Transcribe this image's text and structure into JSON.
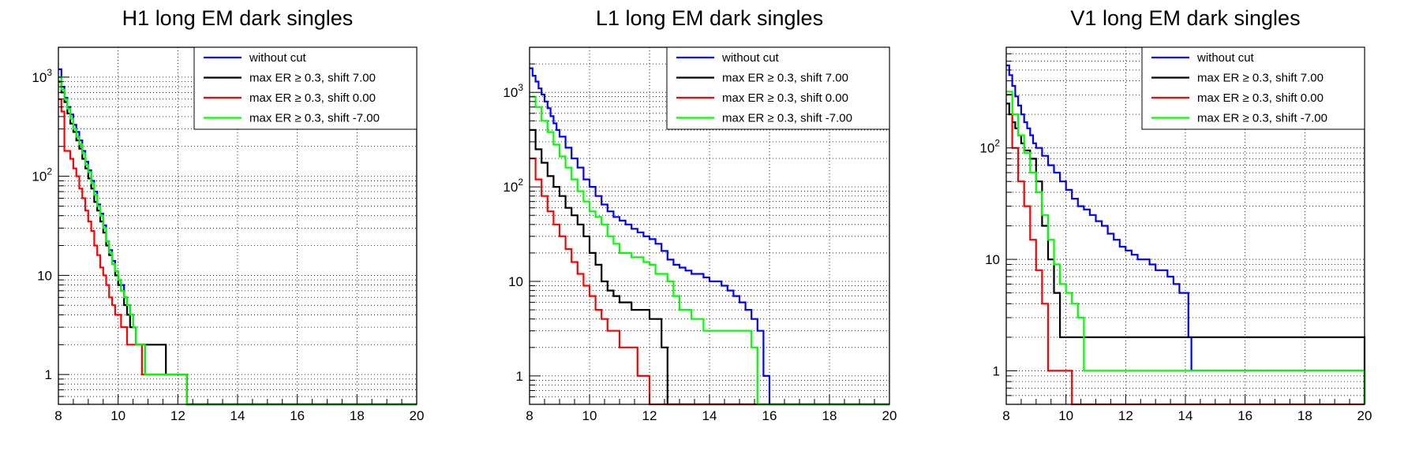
{
  "chart_data": [
    {
      "type": "step",
      "title": "H1 long EM dark singles",
      "xlabel": "",
      "ylabel": "",
      "xlim": [
        8,
        20
      ],
      "ylim": [
        0.5,
        2000
      ],
      "yscale": "log",
      "grid": true,
      "legend_position": "top-right",
      "x_ticks": [
        "8",
        "10",
        "12",
        "14",
        "16",
        "18",
        "20"
      ],
      "y_ticks": [
        {
          "v": 1,
          "base": "1"
        },
        {
          "v": 10,
          "base": "10"
        },
        {
          "v": 100,
          "base": "10",
          "exp": "2"
        },
        {
          "v": 1000,
          "base": "10",
          "exp": "3"
        }
      ],
      "series": [
        {
          "name": "without cut",
          "color": "#0000ff",
          "x": [
            8.0,
            8.1,
            8.2,
            8.3,
            8.4,
            8.5,
            8.6,
            8.7,
            8.8,
            8.9,
            9.0,
            9.1,
            9.2,
            9.3,
            9.4,
            9.5,
            9.6,
            9.7,
            9.8,
            9.9,
            10.0,
            10.1,
            10.2,
            10.3,
            10.4,
            10.5,
            10.6,
            10.7,
            10.8,
            10.9,
            11.6,
            11.7,
            12.3,
            12.4,
            20.0
          ],
          "y": [
            1200,
            800,
            620,
            500,
            420,
            330,
            280,
            230,
            180,
            140,
            115,
            90,
            70,
            52,
            42,
            32,
            22,
            18,
            14,
            11,
            9,
            8,
            6,
            5,
            4,
            3,
            2,
            2,
            2,
            1,
            1,
            1,
            0.5,
            0.5,
            0.5
          ]
        },
        {
          "name": "max ER ≥ 0.3, shift 7.00",
          "color": "#000000",
          "x": [
            8.0,
            8.1,
            8.2,
            8.3,
            8.4,
            8.5,
            8.6,
            8.7,
            8.8,
            8.9,
            9.0,
            9.1,
            9.2,
            9.3,
            9.4,
            9.5,
            9.6,
            9.7,
            9.8,
            9.9,
            10.0,
            10.1,
            10.2,
            10.3,
            10.4,
            10.5,
            10.6,
            10.7,
            10.8,
            11.6,
            11.7,
            12.3,
            12.4,
            20.0
          ],
          "y": [
            900,
            700,
            560,
            430,
            340,
            280,
            230,
            190,
            150,
            120,
            95,
            75,
            55,
            45,
            35,
            27,
            20,
            16,
            13,
            10,
            8,
            7,
            5,
            4,
            3,
            3,
            2,
            2,
            2,
            1,
            1,
            0.5,
            0.5,
            0.5
          ]
        },
        {
          "name": "max ER ≥ 0.3, shift 0.00",
          "color": "#ff0000",
          "x": [
            8.0,
            8.1,
            8.2,
            8.3,
            8.4,
            8.5,
            8.6,
            8.7,
            8.8,
            8.9,
            9.0,
            9.1,
            9.2,
            9.3,
            9.4,
            9.5,
            9.6,
            9.7,
            9.8,
            9.9,
            10.0,
            10.1,
            10.2,
            10.3,
            10.4,
            10.5,
            10.6,
            10.7,
            10.8,
            11.6,
            11.7,
            12.3,
            12.4,
            20.0
          ],
          "y": [
            600,
            450,
            180,
            180,
            150,
            120,
            100,
            75,
            60,
            45,
            35,
            28,
            20,
            16,
            12,
            10,
            8,
            6,
            5,
            4,
            4,
            3,
            3,
            2,
            2,
            2,
            2,
            2,
            1,
            1,
            1,
            0.5,
            0.5,
            0.5
          ]
        },
        {
          "name": "max ER ≥ 0.3, shift -7.00",
          "color": "#00ff00",
          "x": [
            8.0,
            8.1,
            8.2,
            8.3,
            8.4,
            8.5,
            8.6,
            8.7,
            8.8,
            8.9,
            9.0,
            9.1,
            9.2,
            9.3,
            9.4,
            9.5,
            9.6,
            9.7,
            9.8,
            9.9,
            10.0,
            10.1,
            10.2,
            10.3,
            10.4,
            10.5,
            10.6,
            10.7,
            10.8,
            10.9,
            11.6,
            11.7,
            12.3,
            12.4,
            20.0
          ],
          "y": [
            1000,
            750,
            600,
            480,
            380,
            300,
            250,
            210,
            170,
            130,
            110,
            85,
            65,
            50,
            40,
            30,
            22,
            17,
            13,
            11,
            9,
            7,
            6,
            5,
            4,
            3,
            2,
            2,
            2,
            1,
            1,
            1,
            0.5,
            0.5,
            0.5
          ]
        }
      ]
    },
    {
      "type": "step",
      "title": "L1 long EM dark singles",
      "xlabel": "",
      "ylabel": "",
      "xlim": [
        8,
        20
      ],
      "ylim": [
        0.5,
        3000
      ],
      "yscale": "log",
      "grid": true,
      "legend_position": "top-right",
      "x_ticks": [
        "8",
        "10",
        "12",
        "14",
        "16",
        "18",
        "20"
      ],
      "y_ticks": [
        {
          "v": 1,
          "base": "1"
        },
        {
          "v": 10,
          "base": "10"
        },
        {
          "v": 100,
          "base": "10",
          "exp": "2"
        },
        {
          "v": 1000,
          "base": "10",
          "exp": "3"
        }
      ],
      "series": [
        {
          "name": "without cut",
          "color": "#0000ff",
          "x": [
            8.0,
            8.1,
            8.2,
            8.3,
            8.4,
            8.5,
            8.6,
            8.7,
            8.8,
            8.9,
            9.0,
            9.2,
            9.4,
            9.6,
            9.8,
            10.0,
            10.2,
            10.4,
            10.6,
            10.8,
            11.0,
            11.2,
            11.4,
            11.6,
            11.8,
            12.0,
            12.2,
            12.4,
            12.6,
            12.8,
            13.0,
            13.2,
            13.4,
            13.6,
            13.8,
            14.0,
            14.2,
            14.4,
            14.6,
            14.8,
            15.0,
            15.2,
            15.4,
            15.6,
            15.8,
            16.0,
            20.0
          ],
          "y": [
            1800,
            1500,
            1300,
            1100,
            950,
            800,
            680,
            560,
            470,
            400,
            340,
            260,
            200,
            160,
            120,
            100,
            80,
            65,
            55,
            48,
            44,
            40,
            36,
            33,
            30,
            28,
            25,
            21,
            17,
            15,
            14,
            13,
            12,
            12,
            11,
            10,
            10,
            9,
            8,
            7,
            6,
            5,
            4,
            3,
            1,
            0.5,
            0.5
          ]
        },
        {
          "name": "max ER ≥ 0.3, shift 7.00",
          "color": "#000000",
          "x": [
            8.0,
            8.2,
            8.4,
            8.6,
            8.8,
            9.0,
            9.2,
            9.4,
            9.6,
            9.8,
            10.0,
            10.2,
            10.4,
            10.6,
            10.8,
            11.0,
            11.4,
            12.0,
            12.4,
            12.6,
            20.0
          ],
          "y": [
            400,
            250,
            180,
            130,
            100,
            80,
            60,
            50,
            40,
            30,
            20,
            15,
            10,
            8,
            7,
            6,
            5,
            4,
            2,
            0.5,
            0.5
          ]
        },
        {
          "name": "max ER ≥ 0.3, shift 0.00",
          "color": "#ff0000",
          "x": [
            8.0,
            8.2,
            8.4,
            8.6,
            8.8,
            9.0,
            9.2,
            9.4,
            9.6,
            9.8,
            10.0,
            10.2,
            10.4,
            10.6,
            11.0,
            11.6,
            12.0,
            20.0
          ],
          "y": [
            200,
            120,
            80,
            55,
            40,
            30,
            22,
            16,
            12,
            9,
            7,
            5,
            4,
            3,
            2,
            1,
            0.5,
            0.5
          ]
        },
        {
          "name": "max ER ≥ 0.3, shift -7.00",
          "color": "#00ff00",
          "x": [
            8.0,
            8.2,
            8.4,
            8.6,
            8.8,
            9.0,
            9.2,
            9.4,
            9.6,
            9.8,
            10.0,
            10.2,
            10.4,
            10.6,
            10.8,
            11.0,
            11.4,
            11.8,
            12.0,
            12.2,
            12.6,
            12.8,
            13.0,
            13.4,
            13.8,
            14.0,
            14.6,
            15.4,
            15.6,
            20.0
          ],
          "y": [
            900,
            700,
            500,
            380,
            280,
            210,
            160,
            120,
            90,
            70,
            55,
            48,
            40,
            30,
            25,
            20,
            18,
            16,
            15,
            12,
            10,
            7,
            5,
            4,
            3,
            3,
            3,
            2,
            0.5,
            0.5
          ]
        }
      ]
    },
    {
      "type": "step",
      "title": "V1 long EM dark singles",
      "xlabel": "",
      "ylabel": "",
      "xlim": [
        8,
        20
      ],
      "ylim": [
        0.5,
        800
      ],
      "yscale": "log",
      "grid": true,
      "legend_position": "top-right",
      "x_ticks": [
        "8",
        "10",
        "12",
        "14",
        "16",
        "18",
        "20"
      ],
      "y_ticks": [
        {
          "v": 1,
          "base": "1"
        },
        {
          "v": 10,
          "base": "10"
        },
        {
          "v": 100,
          "base": "10",
          "exp": "2"
        }
      ],
      "series": [
        {
          "name": "without cut",
          "color": "#0000ff",
          "x": [
            8.0,
            8.1,
            8.2,
            8.3,
            8.4,
            8.5,
            8.6,
            8.7,
            8.8,
            8.9,
            9.0,
            9.2,
            9.4,
            9.6,
            9.8,
            10.0,
            10.2,
            10.4,
            10.6,
            10.8,
            11.0,
            11.2,
            11.4,
            11.6,
            11.8,
            12.0,
            12.2,
            12.4,
            12.6,
            12.8,
            13.0,
            13.2,
            13.4,
            13.6,
            13.8,
            14.0,
            14.1,
            14.2,
            20.0
          ],
          "y": [
            550,
            450,
            360,
            290,
            240,
            200,
            170,
            150,
            130,
            110,
            100,
            85,
            70,
            60,
            50,
            42,
            35,
            30,
            28,
            25,
            22,
            20,
            17,
            15,
            13,
            12,
            11,
            10,
            10,
            9,
            8,
            8,
            7,
            6,
            5,
            5,
            2,
            1,
            0.5
          ]
        },
        {
          "name": "max ER ≥ 0.3, shift 7.00",
          "color": "#000000",
          "x": [
            8.0,
            8.1,
            8.2,
            8.3,
            8.4,
            8.5,
            8.6,
            8.8,
            9.0,
            9.2,
            9.4,
            9.6,
            9.8,
            20.0
          ],
          "y": [
            250,
            200,
            170,
            150,
            130,
            110,
            95,
            80,
            50,
            20,
            10,
            5,
            2,
            0.5
          ]
        },
        {
          "name": "max ER ≥ 0.3, shift 0.00",
          "color": "#ff0000",
          "x": [
            8.0,
            8.2,
            8.4,
            8.6,
            8.8,
            9.0,
            9.2,
            9.4,
            10.0,
            10.2,
            20.0
          ],
          "y": [
            300,
            100,
            50,
            30,
            15,
            8,
            4,
            1,
            1,
            0.5,
            0.5
          ]
        },
        {
          "name": "max ER ≥ 0.3, shift -7.00",
          "color": "#00ff00",
          "x": [
            8.0,
            8.2,
            8.4,
            8.6,
            8.8,
            9.0,
            9.2,
            9.4,
            9.6,
            9.8,
            10.0,
            10.2,
            10.4,
            10.6,
            20.0
          ],
          "y": [
            320,
            200,
            130,
            90,
            60,
            40,
            25,
            15,
            9,
            6,
            5,
            4,
            3,
            1,
            0.5
          ]
        }
      ]
    }
  ]
}
